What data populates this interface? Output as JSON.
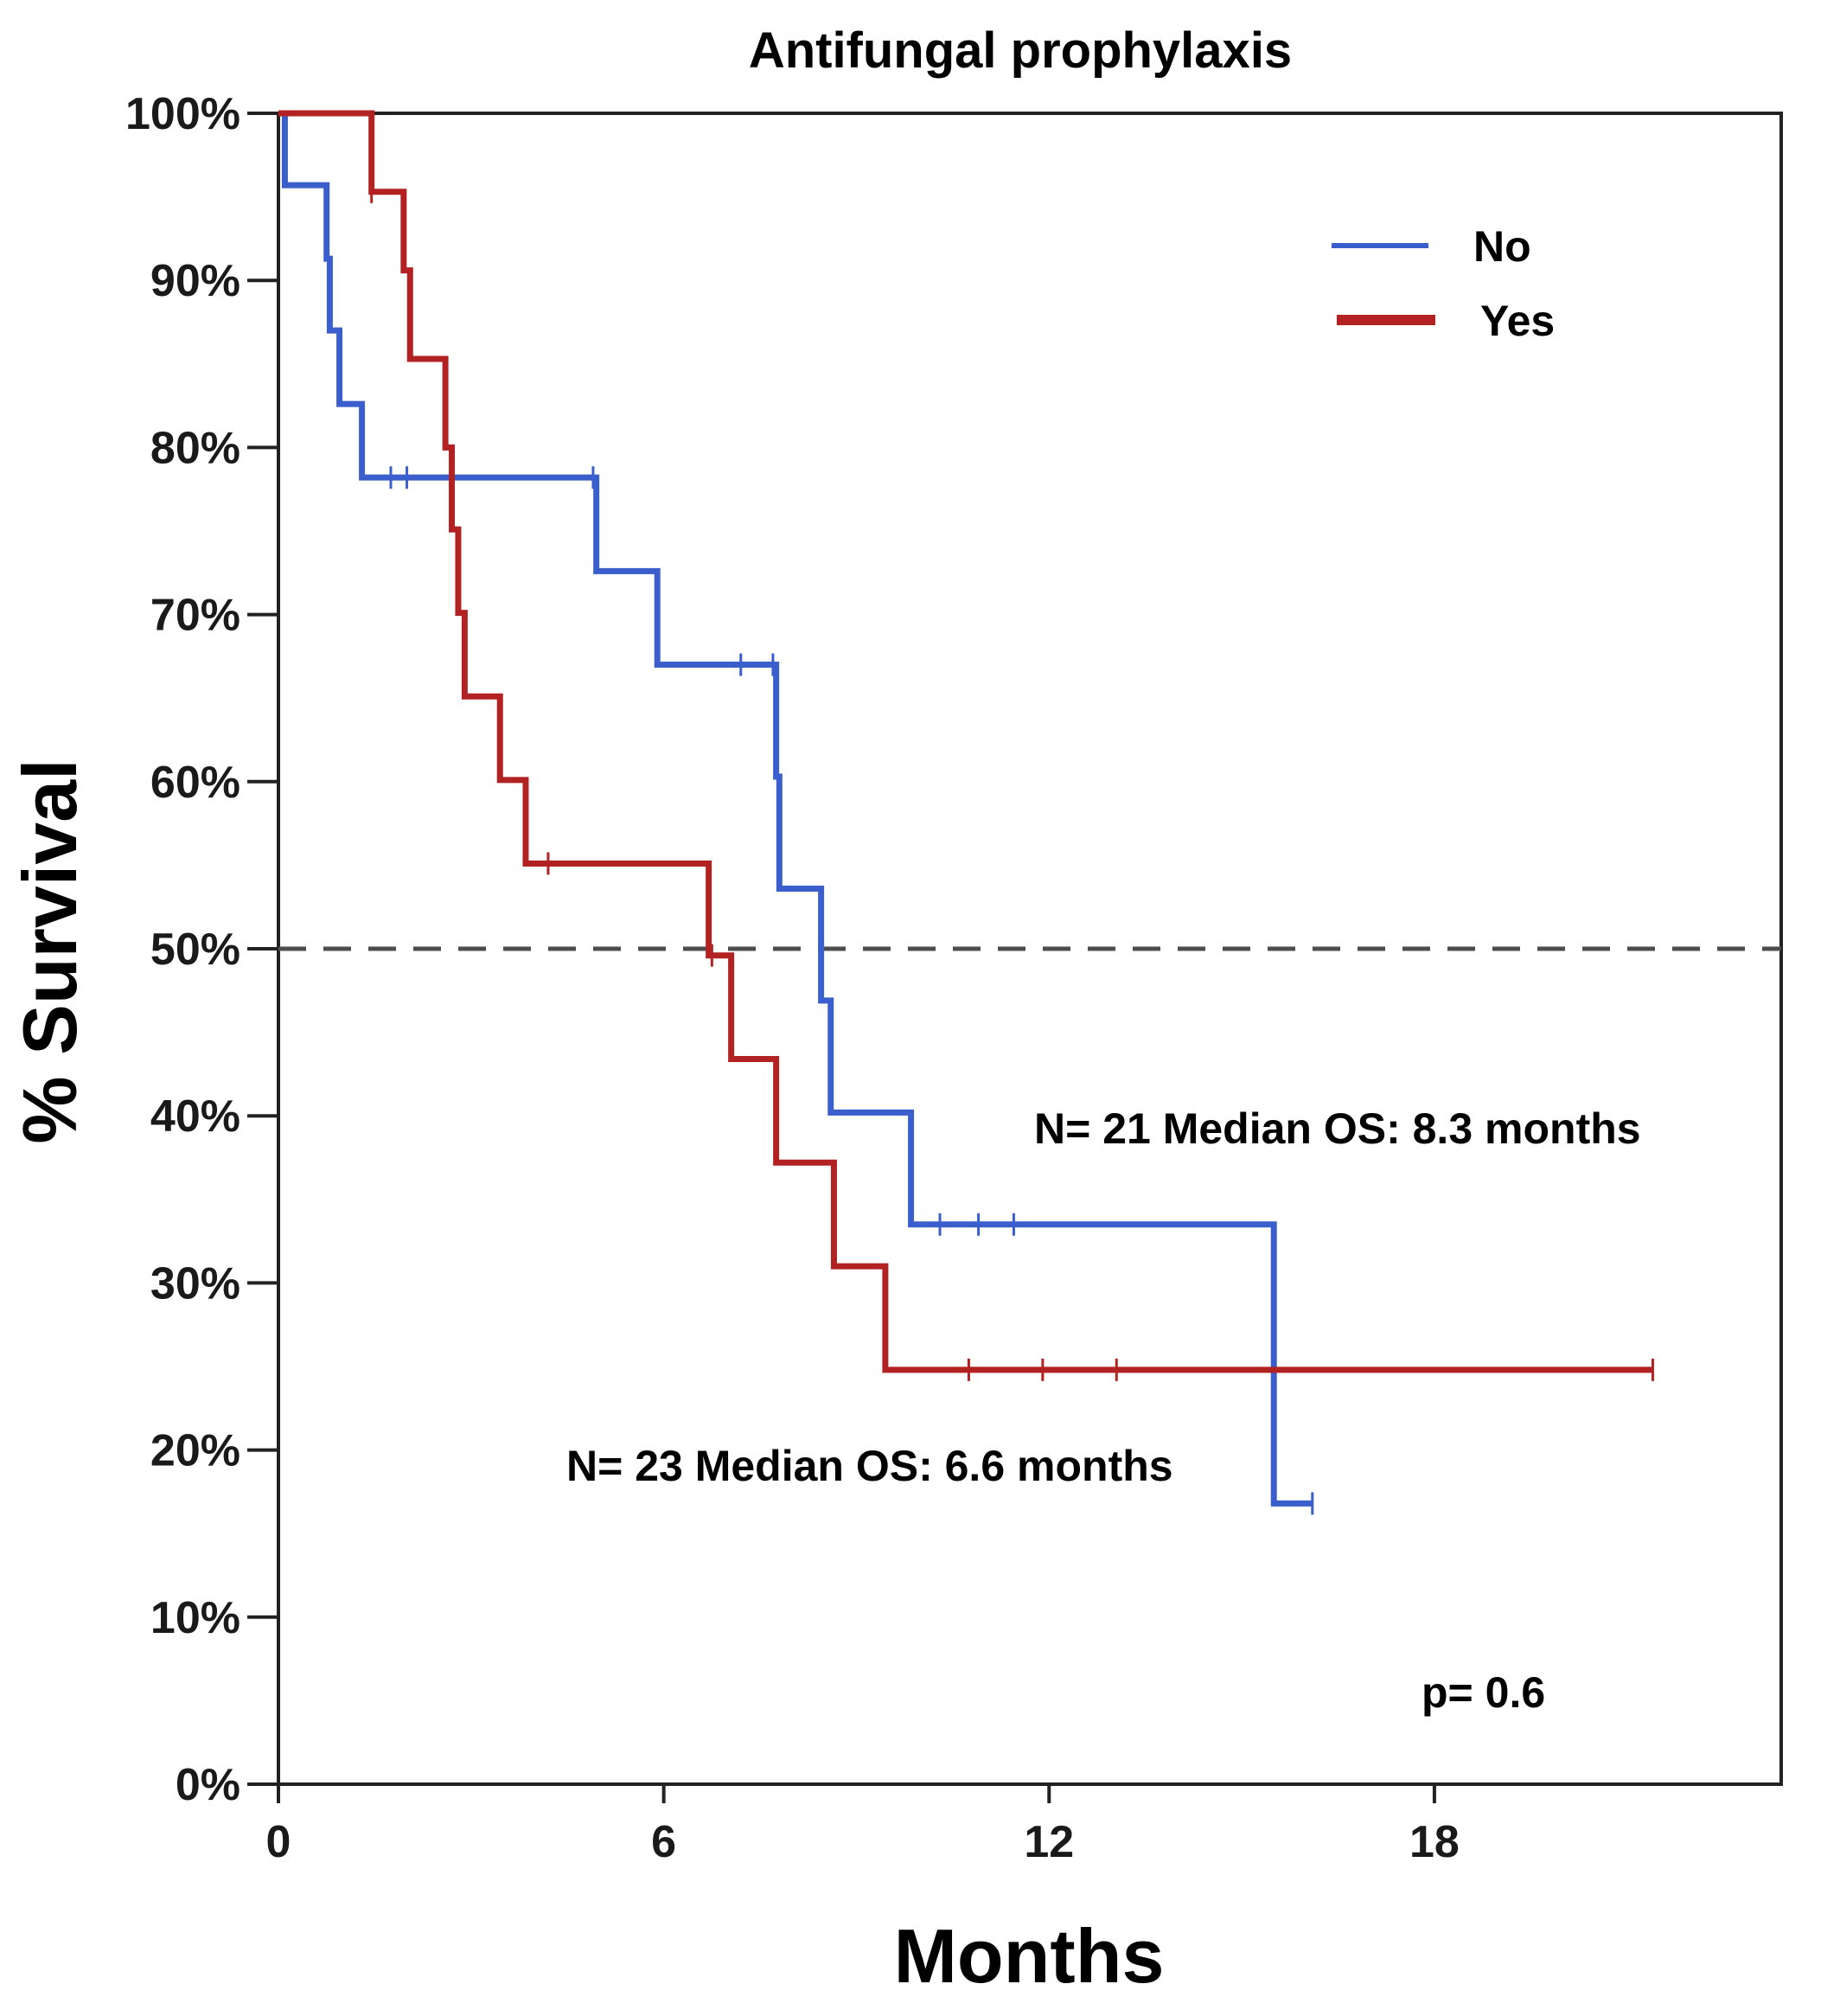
{
  "chart_data": {
    "type": "line",
    "subtype": "kaplan-meier",
    "title": "Antifungal prophylaxis",
    "xlabel": "Months",
    "ylabel": "% Survival",
    "xlim": [
      0,
      23.4
    ],
    "ylim": [
      0,
      100
    ],
    "xticks": [
      0,
      6,
      12,
      18
    ],
    "xtick_labels": [
      "0",
      "6",
      "12",
      "18"
    ],
    "yticks": [
      0,
      10,
      20,
      30,
      40,
      50,
      60,
      70,
      80,
      90,
      100
    ],
    "ytick_labels": [
      "0%",
      "10%",
      "20%",
      "30%",
      "40%",
      "50%",
      "60%",
      "70%",
      "80%",
      "90%",
      "100%"
    ],
    "reference_line": {
      "y": 50,
      "style": "dashed",
      "color": "#4d4d4d"
    },
    "legend": {
      "placement": "top-right",
      "entries": [
        "No",
        "Yes"
      ]
    },
    "series": [
      {
        "name": "No",
        "color": "#3a5fcd",
        "steps": [
          [
            0,
            100
          ],
          [
            0.1,
            95.7
          ],
          [
            0.75,
            91.3
          ],
          [
            0.8,
            87
          ],
          [
            0.95,
            82.6
          ],
          [
            1.3,
            78.2
          ],
          [
            4.95,
            72.6
          ],
          [
            5.9,
            67
          ],
          [
            7.75,
            60.3
          ],
          [
            7.8,
            53.6
          ],
          [
            8.45,
            46.9
          ],
          [
            8.6,
            40.2
          ],
          [
            9.85,
            33.5
          ],
          [
            15.5,
            16.8
          ]
        ],
        "end": 16.1,
        "censored": [
          [
            1.75,
            78.2
          ],
          [
            2.0,
            78.2
          ],
          [
            4.9,
            78.2
          ],
          [
            7.2,
            67
          ],
          [
            7.7,
            67
          ],
          [
            10.3,
            33.5
          ],
          [
            10.9,
            33.5
          ],
          [
            11.45,
            33.5
          ],
          [
            16.1,
            16.8
          ]
        ]
      },
      {
        "name": "Yes",
        "color": "#b22222",
        "steps": [
          [
            0,
            100
          ],
          [
            1.45,
            95.3
          ],
          [
            1.95,
            90.6
          ],
          [
            2.05,
            85.3
          ],
          [
            2.6,
            80
          ],
          [
            2.7,
            75.1
          ],
          [
            2.8,
            70.1
          ],
          [
            2.9,
            65.1
          ],
          [
            3.45,
            60.1
          ],
          [
            3.85,
            55.1
          ],
          [
            6.7,
            49.6
          ],
          [
            7.05,
            43.4
          ],
          [
            7.75,
            37.2
          ],
          [
            8.65,
            31
          ],
          [
            9.45,
            24.8
          ]
        ],
        "end": 21.4,
        "censored": [
          [
            1.45,
            95.3
          ],
          [
            4.2,
            55.1
          ],
          [
            6.75,
            49.6
          ],
          [
            10.75,
            24.8
          ],
          [
            11.9,
            24.8
          ],
          [
            13.05,
            24.8
          ],
          [
            21.4,
            24.8
          ]
        ]
      }
    ],
    "annotations": [
      {
        "id": "no",
        "text": "N= 21 Median OS: 8.3 months",
        "x": 11.8,
        "y": 39
      },
      {
        "id": "yes",
        "text": "N= 23 Median OS: 6.6 months",
        "x": 4.5,
        "y": 18.7
      },
      {
        "id": "p",
        "text": "p= 0.6",
        "x": 17.7,
        "y": 5.2
      }
    ]
  }
}
